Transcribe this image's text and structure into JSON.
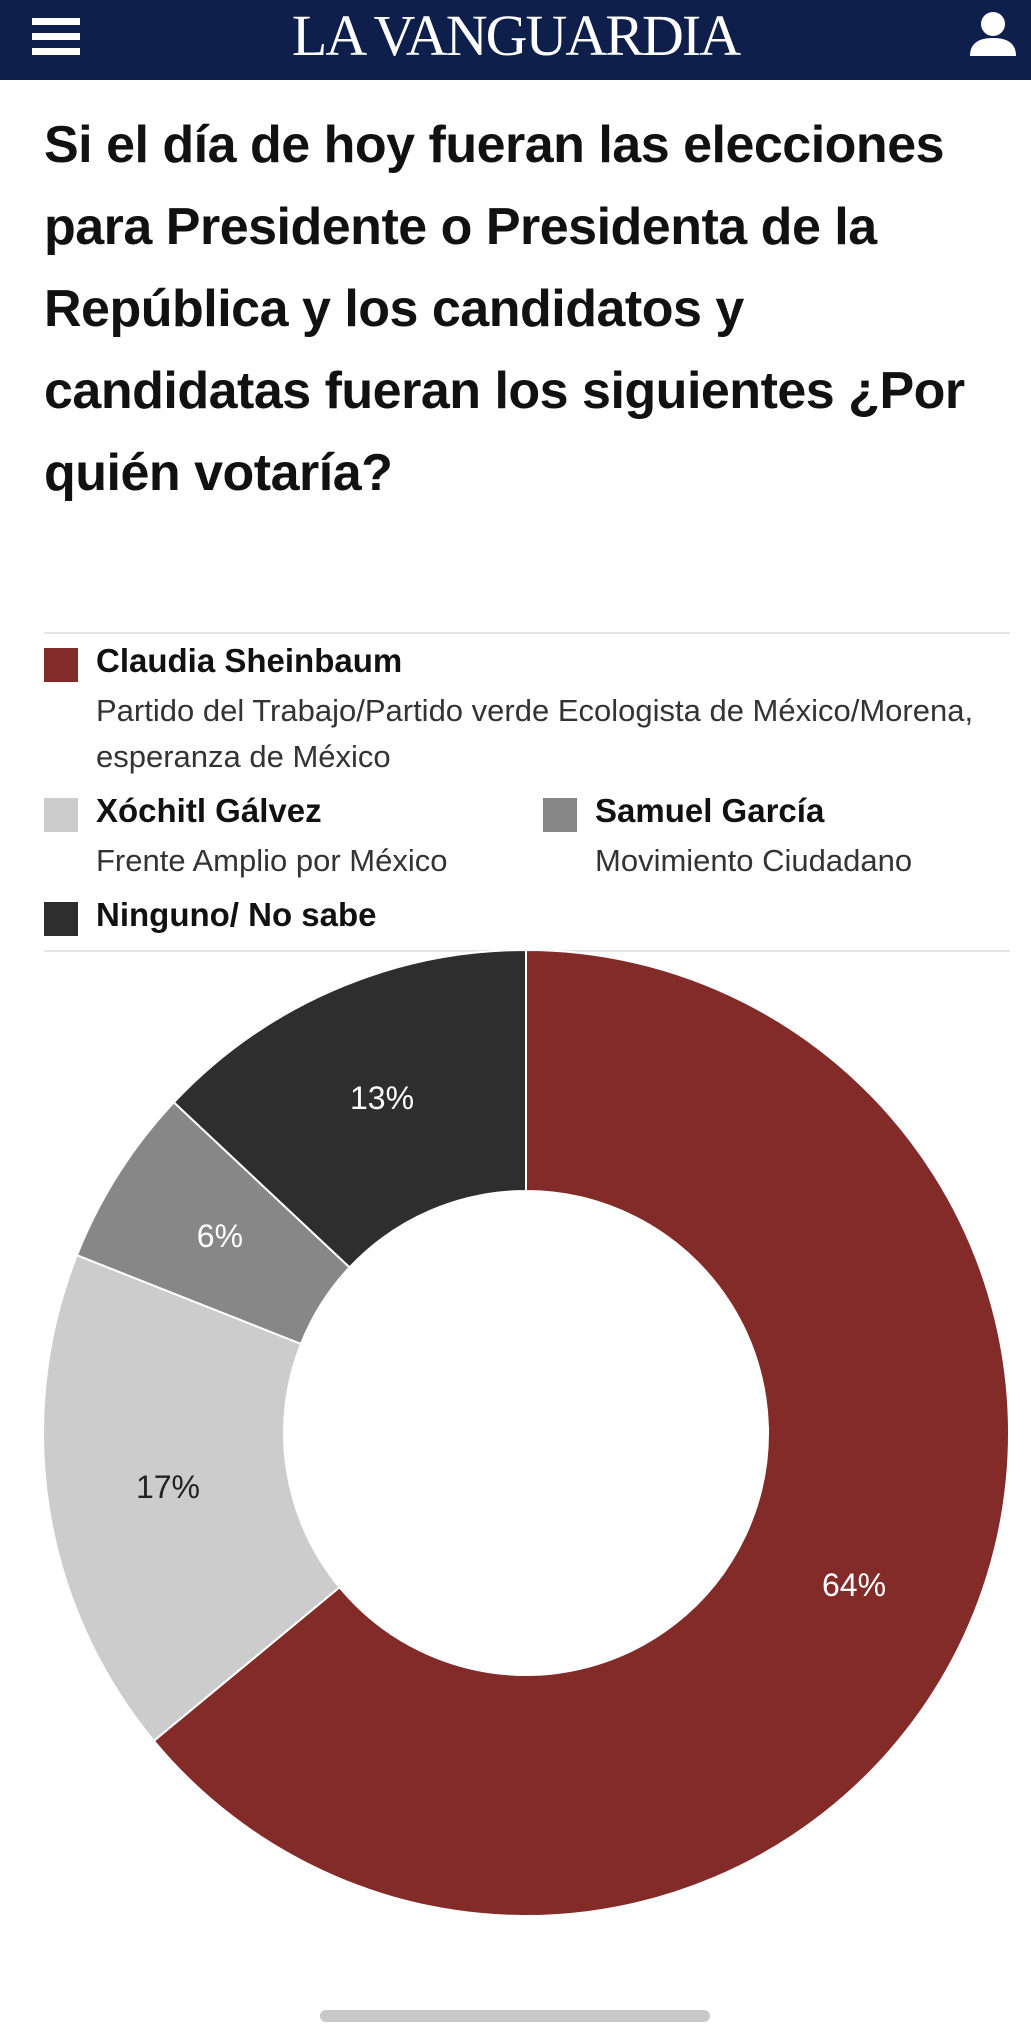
{
  "header": {
    "logo": "LA VANGUARDIA"
  },
  "chart_data": {
    "type": "donut",
    "title": "Si el día de hoy fueran las elecciones para Presidente o Presidenta de la República y los candidatos y candidatas fueran los siguientes ¿Por quién votaría?",
    "categories": [
      "Claudia Sheinbaum",
      "Xóchitl Gálvez",
      "Samuel García",
      "Ninguno/ No sabe"
    ],
    "descriptions": [
      "Partido del Trabajo/Partido verde Ecologista de México/Morena, esperanza de México",
      "Frente Amplio por México",
      "Movimiento Ciudadano",
      null
    ],
    "values": [
      64,
      17,
      6,
      13
    ],
    "value_labels": [
      "64%",
      "17%",
      "6%",
      "13%"
    ],
    "colors": [
      "#822b29",
      "#cccccc",
      "#878787",
      "#2e2e2e"
    ]
  }
}
